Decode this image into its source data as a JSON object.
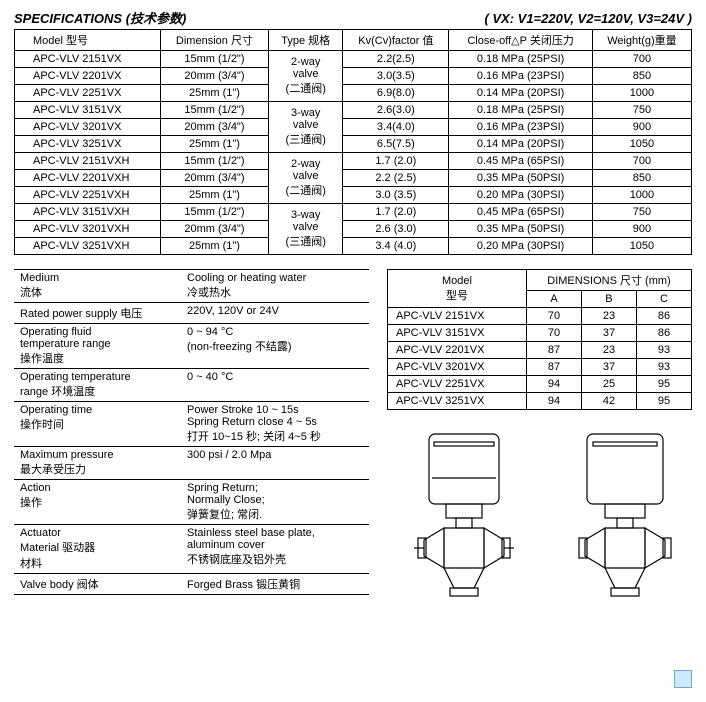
{
  "header": {
    "title": "SPECIFICATIONS (技术参数)",
    "voltage": "( VX:   V1=220V,   V2=120V,   V3=24V )"
  },
  "main_table": {
    "columns": [
      "Model 型号",
      "Dimension 尺寸",
      "Type 规格",
      "Kv(Cv)factor 值",
      "Close-off△P   关闭压力",
      "Weight(g)重量"
    ],
    "rows": [
      {
        "model": "APC-VLV 2151VX",
        "dim": "15mm (1/2\")",
        "type": "2-way",
        "kv": "2.2(2.5)",
        "close": "0.18 MPa   (25PSI)",
        "wt": "700"
      },
      {
        "model": "APC-VLV 2201VX",
        "dim": "20mm (3/4\")",
        "type": "valve",
        "kv": "3.0(3.5)",
        "close": "0.16 MPa   (23PSI)",
        "wt": "850"
      },
      {
        "model": "APC-VLV 2251VX",
        "dim": "25mm   (1\")",
        "type": "(二通阀)",
        "kv": "6.9(8.0)",
        "close": "0.14 MPa   (20PSI)",
        "wt": "1000"
      },
      {
        "model": "APC-VLV 3151VX",
        "dim": "15mm (1/2\")",
        "type": "3-way",
        "kv": "2.6(3.0)",
        "close": "0.18 MPa   (25PSI)",
        "wt": "750"
      },
      {
        "model": "APC-VLV 3201VX",
        "dim": "20mm (3/4\")",
        "type": "valve",
        "kv": "3.4(4.0)",
        "close": "0.16 MPa   (23PSI)",
        "wt": "900"
      },
      {
        "model": "APC-VLV 3251VX",
        "dim": "25mm   (1\")",
        "type": "(三通阀)",
        "kv": "6.5(7.5)",
        "close": "0.14 MPa   (20PSI)",
        "wt": "1050"
      },
      {
        "model": "APC-VLV 2151VXH",
        "dim": "15mm (1/2\")",
        "type": "2-way",
        "kv": "1.7 (2.0)",
        "close": "0.45 MPa   (65PSI)",
        "wt": "700"
      },
      {
        "model": "APC-VLV 2201VXH",
        "dim": "20mm (3/4\")",
        "type": "valve",
        "kv": "2.2 (2.5)",
        "close": "0.35 MPa   (50PSI)",
        "wt": "850"
      },
      {
        "model": "APC-VLV 2251VXH",
        "dim": "25mm   (1\")",
        "type": "(二通阀)",
        "kv": "3.0 (3.5)",
        "close": "0.20 MPa   (30PSI)",
        "wt": "1000"
      },
      {
        "model": "APC-VLV 3151VXH",
        "dim": "15mm (1/2\")",
        "type": "3-way",
        "kv": "1.7 (2.0)",
        "close": "0.45 MPa   (65PSI)",
        "wt": "750"
      },
      {
        "model": "APC-VLV 3201VXH",
        "dim": "20mm (3/4\")",
        "type": "valve",
        "kv": "2.6 (3.0)",
        "close": "0.35 MPa   (50PSI)",
        "wt": "900"
      },
      {
        "model": "APC-VLV 3251VXH",
        "dim": "25mm   (1\")",
        "type": "(三通阀)",
        "kv": "3.4 (4.0)",
        "close": "0.20 MPa   (30PSI)",
        "wt": "1050"
      }
    ]
  },
  "desc_table": {
    "rows": [
      {
        "label": "Medium",
        "label_cn": "流体",
        "val": "Cooling or heating water",
        "val_cn": "冷或热水"
      },
      {
        "label": "Rated power supply  电压",
        "label_cn": "",
        "val": "220V, 120V or 24V",
        "val_cn": ""
      },
      {
        "label": "Operating fluid",
        "label_cn": "temperature range",
        "label_cn2": "操作温度",
        "val": "0 ~ 94 °C",
        "val_cn": "(non-freezing  不结露)"
      },
      {
        "label": "Operating temperature",
        "label_cn": "range  环境温度",
        "val": "0 ~ 40 °C",
        "val_cn": ""
      },
      {
        "label": "Operating time",
        "label_cn": "操作时间",
        "val": "Power Stroke 10 ~ 15s",
        "val_cn": "Spring Return close 4 ~ 5s",
        "val_cn2": "打开  10~15 秒;  关闭  4~5 秒"
      },
      {
        "label": "Maximum pressure",
        "label_cn": "最大承受压力",
        "val": "300 psi / 2.0 Mpa",
        "val_cn": ""
      },
      {
        "label": "Action",
        "label_cn": "操作",
        "val": "Spring Return;",
        "val_cn": "Normally Close;",
        "val_cn2": "弹簧复位; 常闭."
      },
      {
        "label": "              Actuator",
        "label_cn": "Material    驱动器",
        "label_cn2": "材料",
        "val": "Stainless  steel  base  plate,",
        "val_cn": "aluminum cover",
        "val_cn2": "不锈钢底座及铝外壳"
      },
      {
        "label": "          Valve body 阀体",
        "label_cn": "",
        "val": "Forged Brass 锻压黄铜",
        "val_cn": ""
      }
    ]
  },
  "dims_table": {
    "header1": "Model",
    "header1_cn": "型号",
    "header2": "DIMENSIONS  尺寸   (mm)",
    "cols": [
      "A",
      "B",
      "C"
    ],
    "rows": [
      {
        "m": "APC-VLV 2151VX",
        "a": "70",
        "b": "23",
        "c": "86"
      },
      {
        "m": "APC-VLV 3151VX",
        "a": "70",
        "b": "37",
        "c": "86"
      },
      {
        "m": "APC-VLV 2201VX",
        "a": "87",
        "b": "23",
        "c": "93"
      },
      {
        "m": "APC-VLV 3201VX",
        "a": "87",
        "b": "37",
        "c": "93"
      },
      {
        "m": "APC-VLV 2251VX",
        "a": "94",
        "b": "25",
        "c": "95"
      },
      {
        "m": "APC-VLV 3251VX",
        "a": "94",
        "b": "42",
        "c": "95"
      }
    ]
  }
}
